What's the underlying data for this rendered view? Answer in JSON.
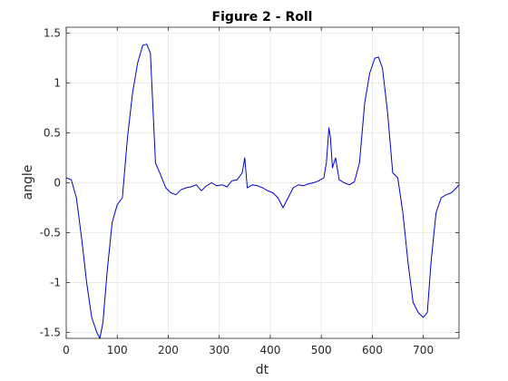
{
  "figure": {
    "title": "Figure 2 - Roll",
    "xlabel": "dt",
    "ylabel": "angle"
  },
  "colors": {
    "line": "#0000c8",
    "grid": "#e6e6e6",
    "axes": "#262626",
    "background": "#ffffff"
  },
  "chart_data": {
    "type": "line",
    "title": "Figure 2 - Roll",
    "xlabel": "dt",
    "ylabel": "angle",
    "xlim": [
      0,
      770
    ],
    "ylim": [
      -1.56,
      1.56
    ],
    "grid": true,
    "xticks": [
      0,
      100,
      200,
      300,
      400,
      500,
      600,
      700
    ],
    "yticks": [
      -1.5,
      -1,
      -0.5,
      0,
      0.5,
      1,
      1.5
    ],
    "xtick_labels": [
      "0",
      "100",
      "200",
      "300",
      "400",
      "500",
      "600",
      "700"
    ],
    "ytick_labels": [
      "-1.5",
      "-1",
      "-0.5",
      "0",
      "0.5",
      "1",
      "1.5"
    ],
    "series": [
      {
        "x": [
          0,
          10,
          20,
          30,
          40,
          50,
          60,
          66,
          72,
          80,
          90,
          100,
          110,
          120,
          130,
          140,
          150,
          158,
          165,
          175,
          185,
          195,
          205,
          215,
          225,
          235,
          245,
          255,
          265,
          275,
          285,
          295,
          305,
          315,
          325,
          335,
          345,
          350,
          355,
          365,
          375,
          385,
          395,
          405,
          415,
          425,
          435,
          445,
          455,
          465,
          475,
          485,
          495,
          505,
          510,
          515,
          518,
          522,
          528,
          535,
          545,
          555,
          565,
          575,
          585,
          595,
          605,
          612,
          620,
          630,
          640,
          650,
          660,
          670,
          680,
          690,
          700,
          708,
          715,
          725,
          735,
          745,
          755,
          765,
          770
        ],
        "y": [
          0.05,
          0.03,
          -0.15,
          -0.55,
          -1.0,
          -1.35,
          -1.5,
          -1.56,
          -1.4,
          -0.9,
          -0.4,
          -0.22,
          -0.15,
          0.45,
          0.9,
          1.2,
          1.38,
          1.39,
          1.3,
          0.2,
          0.08,
          -0.05,
          -0.1,
          -0.12,
          -0.07,
          -0.05,
          -0.04,
          -0.02,
          -0.08,
          -0.03,
          0.0,
          -0.03,
          -0.02,
          -0.04,
          0.02,
          0.03,
          0.1,
          0.25,
          -0.05,
          -0.02,
          -0.03,
          -0.05,
          -0.08,
          -0.1,
          -0.15,
          -0.25,
          -0.15,
          -0.05,
          -0.02,
          -0.03,
          -0.01,
          0.0,
          0.02,
          0.05,
          0.2,
          0.55,
          0.45,
          0.15,
          0.25,
          0.03,
          0.0,
          -0.02,
          0.01,
          0.2,
          0.8,
          1.1,
          1.25,
          1.26,
          1.15,
          0.7,
          0.1,
          0.05,
          -0.3,
          -0.8,
          -1.2,
          -1.3,
          -1.35,
          -1.3,
          -0.8,
          -0.3,
          -0.15,
          -0.12,
          -0.1,
          -0.05,
          -0.02
        ]
      }
    ]
  }
}
